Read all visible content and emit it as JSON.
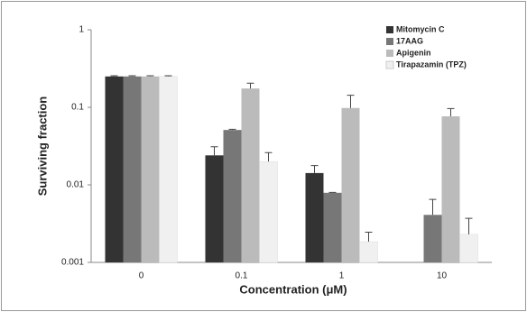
{
  "chart_data": {
    "type": "bar",
    "scale": "log",
    "xlabel": "Concentration (μM)",
    "ylabel": "Surviving fraction",
    "categories": [
      "0",
      "0.1",
      "1",
      "10"
    ],
    "series": [
      {
        "name": "Mitomycin C",
        "color": "#333333",
        "values": [
          0.25,
          0.024,
          0.0142,
          null
        ],
        "errors": [
          0.005,
          0.007,
          0.0035,
          null
        ]
      },
      {
        "name": "17AAG",
        "color": "#777777",
        "values": [
          0.25,
          0.051,
          0.0079,
          0.0041
        ],
        "errors": [
          0.005,
          0.001,
          0.0001,
          0.0024
        ]
      },
      {
        "name": "Apigenin",
        "color": "#bbbbbb",
        "values": [
          0.25,
          0.175,
          0.098,
          0.0765
        ],
        "errors": [
          0.005,
          0.03,
          0.045,
          0.02
        ]
      },
      {
        "name": "Tirapazamin (TPZ)",
        "color": "#f0f0f0",
        "values": [
          0.25,
          0.02,
          0.00185,
          0.0023
        ],
        "errors": [
          0.005,
          0.006,
          0.0006,
          0.0014
        ]
      }
    ],
    "ylim": [
      0.001,
      1
    ],
    "yticks": [
      1,
      0.1,
      0.01,
      0.001
    ],
    "legend": "top-right"
  }
}
